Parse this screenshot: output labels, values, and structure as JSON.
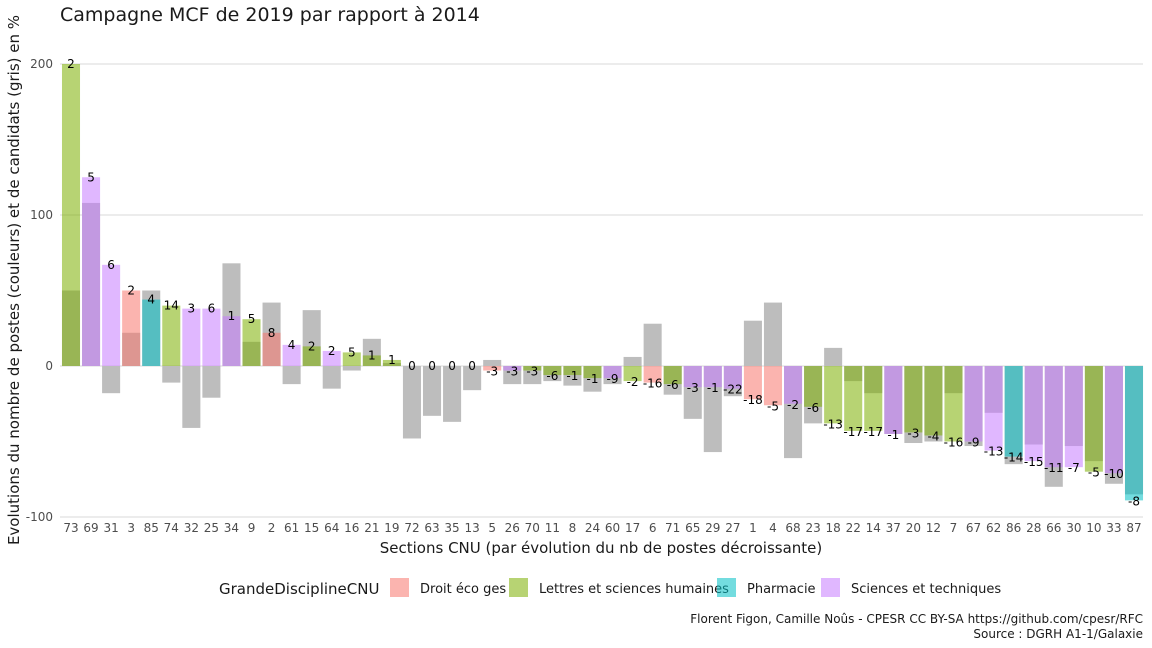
{
  "chart_data": {
    "type": "bar",
    "title": "Campagne MCF de 2019 par rapport à 2014",
    "xlabel": "Sections CNU (par évolution du nb de postes décroissante)",
    "ylabel": "Evolutions du nombre de postes (couleurs) et de candidats (gris) en %",
    "ylim": [
      -100,
      210
    ],
    "yticks": [
      -100,
      0,
      100,
      200
    ],
    "grid": true,
    "legend": {
      "title": "GrandeDisciplineCNU",
      "position": "bottom",
      "entries": [
        {
          "name": "Droit éco ges",
          "color": "#F8766D"
        },
        {
          "name": "Lettres et sciences humaines",
          "color": "#7CAE00"
        },
        {
          "name": "Pharmacie",
          "color": "#00BFC4"
        },
        {
          "name": "Sciences et techniques",
          "color": "#C77CFF"
        }
      ]
    },
    "candidates_color": "#bdbdbd",
    "caption": [
      "Florent Figon, Camille Noûs - CPESR CC BY-SA https://github.com/cpesr/RFC",
      "Source : DGRH A1-1/Galaxie"
    ],
    "sections": [
      {
        "section": "73",
        "discipline": "Lettres et sciences humaines",
        "postes_pct": 200,
        "candidats_pct": 50,
        "label": "2"
      },
      {
        "section": "69",
        "discipline": "Sciences et techniques",
        "postes_pct": 125,
        "candidats_pct": 108,
        "label": "5"
      },
      {
        "section": "31",
        "discipline": "Sciences et techniques",
        "postes_pct": 67,
        "candidats_pct": -18,
        "label": "6"
      },
      {
        "section": "3",
        "discipline": "Droit éco ges",
        "postes_pct": 50,
        "candidats_pct": 22,
        "label": "2"
      },
      {
        "section": "85",
        "discipline": "Pharmacie",
        "postes_pct": 44,
        "candidats_pct": 50,
        "label": "4"
      },
      {
        "section": "74",
        "discipline": "Lettres et sciences humaines",
        "postes_pct": 40,
        "candidats_pct": -11,
        "label": "14"
      },
      {
        "section": "32",
        "discipline": "Sciences et techniques",
        "postes_pct": 38,
        "candidats_pct": -41,
        "label": "3"
      },
      {
        "section": "25",
        "discipline": "Sciences et techniques",
        "postes_pct": 38,
        "candidats_pct": -21,
        "label": "6"
      },
      {
        "section": "34",
        "discipline": "Sciences et techniques",
        "postes_pct": 33,
        "candidats_pct": 68,
        "label": "1"
      },
      {
        "section": "9",
        "discipline": "Lettres et sciences humaines",
        "postes_pct": 31,
        "candidats_pct": 16,
        "label": "5"
      },
      {
        "section": "2",
        "discipline": "Droit éco ges",
        "postes_pct": 22,
        "candidats_pct": 42,
        "label": "8"
      },
      {
        "section": "61",
        "discipline": "Sciences et techniques",
        "postes_pct": 14,
        "candidats_pct": -12,
        "label": "4"
      },
      {
        "section": "15",
        "discipline": "Lettres et sciences humaines",
        "postes_pct": 13,
        "candidats_pct": 37,
        "label": "2"
      },
      {
        "section": "64",
        "discipline": "Sciences et techniques",
        "postes_pct": 10,
        "candidats_pct": -15,
        "label": "2"
      },
      {
        "section": "16",
        "discipline": "Lettres et sciences humaines",
        "postes_pct": 9,
        "candidats_pct": -3,
        "label": "5"
      },
      {
        "section": "21",
        "discipline": "Lettres et sciences humaines",
        "postes_pct": 7,
        "candidats_pct": 18,
        "label": "1"
      },
      {
        "section": "19",
        "discipline": "Lettres et sciences humaines",
        "postes_pct": 4,
        "candidats_pct": 2,
        "label": "1"
      },
      {
        "section": "72",
        "discipline": "Lettres et sciences humaines",
        "postes_pct": 0,
        "candidats_pct": -48,
        "label": "0"
      },
      {
        "section": "63",
        "discipline": "Sciences et techniques",
        "postes_pct": 0,
        "candidats_pct": -33,
        "label": "0"
      },
      {
        "section": "35",
        "discipline": "Sciences et techniques",
        "postes_pct": 0,
        "candidats_pct": -37,
        "label": "0"
      },
      {
        "section": "13",
        "discipline": "Lettres et sciences humaines",
        "postes_pct": 0,
        "candidats_pct": -16,
        "label": "0"
      },
      {
        "section": "5",
        "discipline": "Droit éco ges",
        "postes_pct": -3,
        "candidats_pct": 4,
        "label": "-3"
      },
      {
        "section": "26",
        "discipline": "Sciences et techniques",
        "postes_pct": -3,
        "candidats_pct": -12,
        "label": "-3"
      },
      {
        "section": "70",
        "discipline": "Lettres et sciences humaines",
        "postes_pct": -3,
        "candidats_pct": -12,
        "label": "-3"
      },
      {
        "section": "11",
        "discipline": "Lettres et sciences humaines",
        "postes_pct": -6,
        "candidats_pct": -10,
        "label": "-6"
      },
      {
        "section": "8",
        "discipline": "Lettres et sciences humaines",
        "postes_pct": -6,
        "candidats_pct": -13,
        "label": "-1"
      },
      {
        "section": "24",
        "discipline": "Lettres et sciences humaines",
        "postes_pct": -8,
        "candidats_pct": -17,
        "label": "-1"
      },
      {
        "section": "60",
        "discipline": "Sciences et techniques",
        "postes_pct": -8,
        "candidats_pct": -12,
        "label": "-9"
      },
      {
        "section": "17",
        "discipline": "Lettres et sciences humaines",
        "postes_pct": -10,
        "candidats_pct": 6,
        "label": "-2"
      },
      {
        "section": "6",
        "discipline": "Droit éco ges",
        "postes_pct": -11,
        "candidats_pct": 28,
        "label": "-16"
      },
      {
        "section": "71",
        "discipline": "Lettres et sciences humaines",
        "postes_pct": -12,
        "candidats_pct": -19,
        "label": "-6"
      },
      {
        "section": "65",
        "discipline": "Sciences et techniques",
        "postes_pct": -14,
        "candidats_pct": -35,
        "label": "-3"
      },
      {
        "section": "29",
        "discipline": "Sciences et techniques",
        "postes_pct": -14,
        "candidats_pct": -57,
        "label": "-1"
      },
      {
        "section": "27",
        "discipline": "Sciences et techniques",
        "postes_pct": -15,
        "candidats_pct": -20,
        "label": "-22"
      },
      {
        "section": "1",
        "discipline": "Droit éco ges",
        "postes_pct": -22,
        "candidats_pct": 30,
        "label": "-18"
      },
      {
        "section": "4",
        "discipline": "Droit éco ges",
        "postes_pct": -26,
        "candidats_pct": 42,
        "label": "-5"
      },
      {
        "section": "68",
        "discipline": "Sciences et techniques",
        "postes_pct": -25,
        "candidats_pct": -61,
        "label": "-2"
      },
      {
        "section": "23",
        "discipline": "Lettres et sciences humaines",
        "postes_pct": -27,
        "candidats_pct": -38,
        "label": "-6"
      },
      {
        "section": "18",
        "discipline": "Lettres et sciences humaines",
        "postes_pct": -38,
        "candidats_pct": 12,
        "label": "-13"
      },
      {
        "section": "22",
        "discipline": "Lettres et sciences humaines",
        "postes_pct": -43,
        "candidats_pct": -10,
        "label": "-17"
      },
      {
        "section": "14",
        "discipline": "Lettres et sciences humaines",
        "postes_pct": -43,
        "candidats_pct": -18,
        "label": "-17"
      },
      {
        "section": "37",
        "discipline": "Sciences et techniques",
        "postes_pct": -45,
        "candidats_pct": -45,
        "label": "-1"
      },
      {
        "section": "20",
        "discipline": "Lettres et sciences humaines",
        "postes_pct": -44,
        "candidats_pct": -51,
        "label": "-3"
      },
      {
        "section": "12",
        "discipline": "Lettres et sciences humaines",
        "postes_pct": -46,
        "candidats_pct": -50,
        "label": "-4"
      },
      {
        "section": "7",
        "discipline": "Lettres et sciences humaines",
        "postes_pct": -50,
        "candidats_pct": -18,
        "label": "-16"
      },
      {
        "section": "67",
        "discipline": "Sciences et techniques",
        "postes_pct": -50,
        "candidats_pct": -53,
        "label": "-9"
      },
      {
        "section": "62",
        "discipline": "Sciences et techniques",
        "postes_pct": -56,
        "candidats_pct": -31,
        "label": "-13"
      },
      {
        "section": "86",
        "discipline": "Pharmacie",
        "postes_pct": -60,
        "candidats_pct": -65,
        "label": "-14"
      },
      {
        "section": "28",
        "discipline": "Sciences et techniques",
        "postes_pct": -63,
        "candidats_pct": -52,
        "label": "-15"
      },
      {
        "section": "66",
        "discipline": "Sciences et techniques",
        "postes_pct": -67,
        "candidats_pct": -80,
        "label": "-11"
      },
      {
        "section": "30",
        "discipline": "Sciences et techniques",
        "postes_pct": -67,
        "candidats_pct": -53,
        "label": "-7"
      },
      {
        "section": "10",
        "discipline": "Lettres et sciences humaines",
        "postes_pct": -70,
        "candidats_pct": -63,
        "label": "-5"
      },
      {
        "section": "33",
        "discipline": "Sciences et techniques",
        "postes_pct": -71,
        "candidats_pct": -78,
        "label": "-10"
      },
      {
        "section": "87",
        "discipline": "Pharmacie",
        "postes_pct": -89,
        "candidats_pct": -85,
        "label": "-8"
      }
    ]
  }
}
